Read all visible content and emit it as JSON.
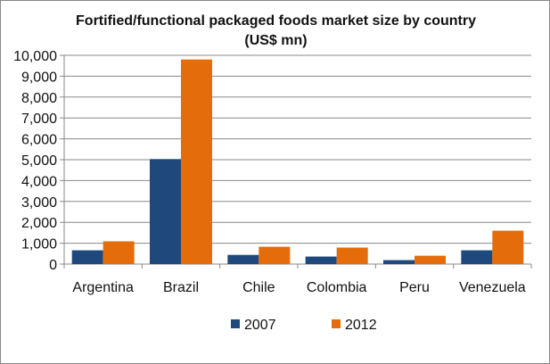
{
  "chart_data": {
    "type": "bar",
    "title": "Fortified/functional packaged foods market size by country",
    "subtitle": "(US$ mn)",
    "categories": [
      "Argentina",
      "Brazil",
      "Chile",
      "Colombia",
      "Peru",
      "Venezuela"
    ],
    "series": [
      {
        "name": "2007",
        "color": "#1F497D",
        "values": [
          660,
          5030,
          440,
          360,
          190,
          660
        ]
      },
      {
        "name": "2012",
        "color": "#E46C0A",
        "values": [
          1090,
          9800,
          830,
          790,
          400,
          1600
        ]
      }
    ],
    "ylim": [
      0,
      10000
    ],
    "yticks": [
      0,
      1000,
      2000,
      3000,
      4000,
      5000,
      6000,
      7000,
      8000,
      9000,
      10000
    ],
    "ytick_labels": [
      "0",
      "1,000",
      "2,000",
      "3,000",
      "4,000",
      "5,000",
      "6,000",
      "7,000",
      "8,000",
      "9,000",
      "10,000"
    ],
    "xlabel": "",
    "ylabel": "",
    "grid": true,
    "legend": "bottom"
  }
}
